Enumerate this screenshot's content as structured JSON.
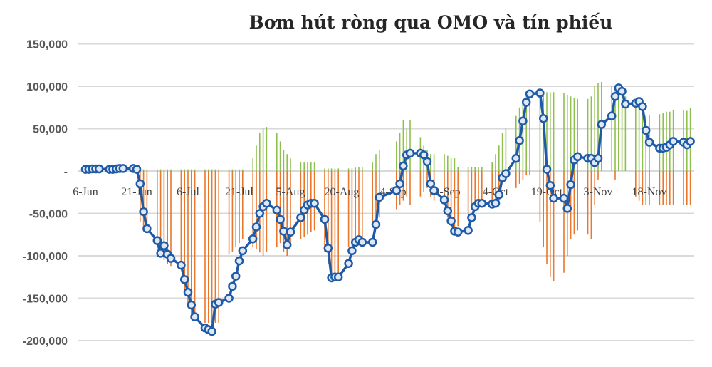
{
  "chart_data": {
    "type": "line+bar",
    "title": "Bơm hút ròng qua OMO và tín phiếu",
    "xlabel": "",
    "ylabel": "",
    "ylim": [
      -200000,
      150000
    ],
    "y_ticks": [
      150000,
      100000,
      50000,
      0,
      -50000,
      -100000,
      -150000,
      -200000
    ],
    "y_tick_labels": [
      "150,000",
      "100,000",
      "50,000",
      "-",
      "-50,000",
      "-100,000",
      "-150,000",
      "-200,000"
    ],
    "x_tick_labels": [
      "6-Jun",
      "21-Jun",
      "6-Jul",
      "21-Jul",
      "5-Aug",
      "20-Aug",
      "4-Sep",
      "19-Sep",
      "4-Oct",
      "19-Oct",
      "3-Nov",
      "18-Nov"
    ],
    "grid": true,
    "legend": "none",
    "colors": {
      "line": "#1f5aa6",
      "positive_bars": "#8fc04f",
      "negative_bars": "#e9772c",
      "grid": "#d9d9d9"
    },
    "x": [
      "6-Jun",
      "7-Jun",
      "8-Jun",
      "9-Jun",
      "10-Jun",
      "13-Jun",
      "14-Jun",
      "15-Jun",
      "16-Jun",
      "17-Jun",
      "20-Jun",
      "21-Jun",
      "22-Jun",
      "23-Jun",
      "24-Jun",
      "27-Jun",
      "28-Jun",
      "29-Jun",
      "30-Jun",
      "1-Jul",
      "4-Jul",
      "5-Jul",
      "6-Jul",
      "7-Jul",
      "8-Jul",
      "11-Jul",
      "12-Jul",
      "13-Jul",
      "14-Jul",
      "15-Jul",
      "18-Jul",
      "19-Jul",
      "20-Jul",
      "21-Jul",
      "22-Jul",
      "25-Jul",
      "26-Jul",
      "27-Jul",
      "28-Jul",
      "29-Jul",
      "1-Aug",
      "2-Aug",
      "3-Aug",
      "4-Aug",
      "5-Aug",
      "8-Aug",
      "9-Aug",
      "10-Aug",
      "11-Aug",
      "12-Aug",
      "15-Aug",
      "16-Aug",
      "17-Aug",
      "18-Aug",
      "19-Aug",
      "22-Aug",
      "23-Aug",
      "24-Aug",
      "25-Aug",
      "26-Aug",
      "29-Aug",
      "30-Aug",
      "31-Aug",
      "5-Sep",
      "6-Sep",
      "7-Sep",
      "8-Sep",
      "9-Sep",
      "12-Sep",
      "13-Sep",
      "14-Sep",
      "15-Sep",
      "16-Sep",
      "19-Sep",
      "20-Sep",
      "21-Sep",
      "22-Sep",
      "23-Sep",
      "26-Sep",
      "27-Sep",
      "28-Sep",
      "29-Sep",
      "30-Sep",
      "3-Oct",
      "4-Oct",
      "5-Oct",
      "6-Oct",
      "7-Oct",
      "10-Oct",
      "11-Oct",
      "12-Oct",
      "13-Oct",
      "14-Oct",
      "17-Oct",
      "18-Oct",
      "19-Oct",
      "20-Oct",
      "21-Oct",
      "24-Oct",
      "25-Oct",
      "26-Oct",
      "27-Oct",
      "28-Oct",
      "31-Oct",
      "1-Nov",
      "2-Nov",
      "3-Nov",
      "4-Nov",
      "7-Nov",
      "8-Nov",
      "9-Nov",
      "10-Nov",
      "11-Nov",
      "14-Nov",
      "15-Nov",
      "16-Nov",
      "17-Nov",
      "18-Nov",
      "21-Nov",
      "22-Nov",
      "23-Nov",
      "24-Nov",
      "25-Nov",
      "28-Nov",
      "29-Nov",
      "30-Nov"
    ],
    "series": [
      {
        "type": "line",
        "values": [
          2000,
          2000,
          2500,
          2500,
          2500,
          2000,
          2000,
          2500,
          3000,
          3000,
          3000,
          2000,
          -15000,
          -48000,
          -68000,
          -82000,
          -97000,
          -88000,
          -98000,
          -103000,
          -111000,
          -128000,
          -143000,
          -158000,
          -172000,
          -185000,
          -187000,
          -189000,
          -157000,
          -155000,
          -150000,
          -136000,
          -124000,
          -106000,
          -94000,
          -80000,
          -66000,
          -50000,
          -42000,
          -38000,
          -46000,
          -57000,
          -71000,
          -87000,
          -72000,
          -55000,
          -46000,
          -40000,
          -38000,
          -38000,
          -57000,
          -91000,
          -126000,
          -125000,
          -125000,
          -109000,
          -94000,
          -84000,
          -81000,
          -84000,
          -84000,
          -63000,
          -31000,
          -23000,
          -15000,
          6000,
          19000,
          21000,
          21000,
          19000,
          11000,
          -15000,
          -23000,
          -34000,
          -47000,
          -59000,
          -71000,
          -72000,
          -70000,
          -55000,
          -42000,
          -38000,
          -38000,
          -39000,
          -38000,
          -28000,
          -8000,
          -3000,
          15000,
          36000,
          59000,
          81000,
          91000,
          92000,
          62000,
          2000,
          -17000,
          -32000,
          -32000,
          -44000,
          -16000,
          13000,
          17000,
          15000,
          15000,
          10000,
          15000,
          55000,
          65000,
          88000,
          98000,
          94000,
          79000,
          80000,
          82000,
          76000,
          48000,
          34000,
          27000,
          27000,
          28000,
          31000,
          35000,
          34000,
          31000,
          35000
        ]
      },
      {
        "type": "bar",
        "values": [
          0,
          0,
          0,
          0,
          0,
          0,
          0,
          0,
          0,
          0,
          0,
          0,
          2000,
          2000,
          2000,
          2000,
          2000,
          2000,
          2000,
          2000,
          2000,
          2000,
          2000,
          2000,
          2000,
          2000,
          2000,
          2000,
          2000,
          2000,
          2000,
          2000,
          2000,
          2000,
          2000,
          15000,
          30000,
          45000,
          50000,
          52000,
          45000,
          35000,
          25000,
          20000,
          15000,
          10000,
          10000,
          10000,
          10000,
          10000,
          3000,
          3000,
          3000,
          3000,
          3000,
          3000,
          3000,
          4000,
          5000,
          5000,
          10000,
          20000,
          25000,
          35000,
          45000,
          60000,
          50000,
          60000,
          40000,
          30000,
          25000,
          20000,
          20000,
          20000,
          18000,
          15000,
          15000,
          5000,
          5000,
          5000,
          5000,
          5000,
          5000,
          10000,
          20000,
          30000,
          45000,
          50000,
          65000,
          75000,
          85000,
          90000,
          92000,
          93000,
          93000,
          93000,
          93000,
          93000,
          92000,
          90000,
          88000,
          86000,
          85000,
          85000,
          88000,
          100000,
          104000,
          105000,
          100000,
          95000,
          92000,
          90000,
          88000,
          80000,
          75000,
          68000,
          66000,
          66000,
          67000,
          68000,
          70000,
          70000,
          72000,
          72000,
          71000,
          74000
        ]
      },
      {
        "type": "bar",
        "values": [
          0,
          0,
          0,
          0,
          0,
          0,
          0,
          0,
          0,
          0,
          0,
          0,
          -60000,
          -68000,
          -70000,
          -95000,
          -100000,
          -105000,
          -110000,
          -112000,
          -115000,
          -140000,
          -160000,
          -170000,
          -175000,
          -179000,
          -179000,
          -179000,
          -179000,
          -179000,
          -98000,
          -95000,
          -90000,
          -85000,
          -80000,
          -90000,
          -92000,
          -96000,
          -100000,
          -95000,
          -90000,
          -85000,
          -95000,
          -100000,
          -85000,
          -80000,
          -78000,
          -75000,
          -72000,
          -70000,
          -95000,
          -110000,
          -120000,
          -123000,
          -120000,
          -90000,
          -88000,
          -85000,
          -84000,
          -84000,
          -60000,
          -55000,
          -55000,
          -45000,
          -40000,
          -35000,
          -30000,
          -40000,
          -30000,
          -25000,
          -20000,
          -30000,
          -35000,
          -40000,
          -55000,
          -65000,
          -70000,
          -65000,
          -50000,
          -45000,
          -40000,
          -40000,
          -40000,
          -40000,
          -38000,
          -35000,
          -10000,
          -5000,
          -20000,
          -15000,
          -10000,
          -5000,
          -5000,
          -60000,
          -90000,
          -110000,
          -125000,
          -130000,
          -120000,
          -100000,
          -80000,
          -75000,
          -70000,
          -75000,
          -80000,
          -40000,
          -10000,
          0,
          0,
          -10000,
          0,
          0,
          0,
          -30000,
          -35000,
          -40000,
          -40000,
          -40000,
          -40000,
          -40000,
          -40000,
          -40000,
          -40000,
          -40000,
          -40000,
          -40000
        ]
      }
    ]
  }
}
